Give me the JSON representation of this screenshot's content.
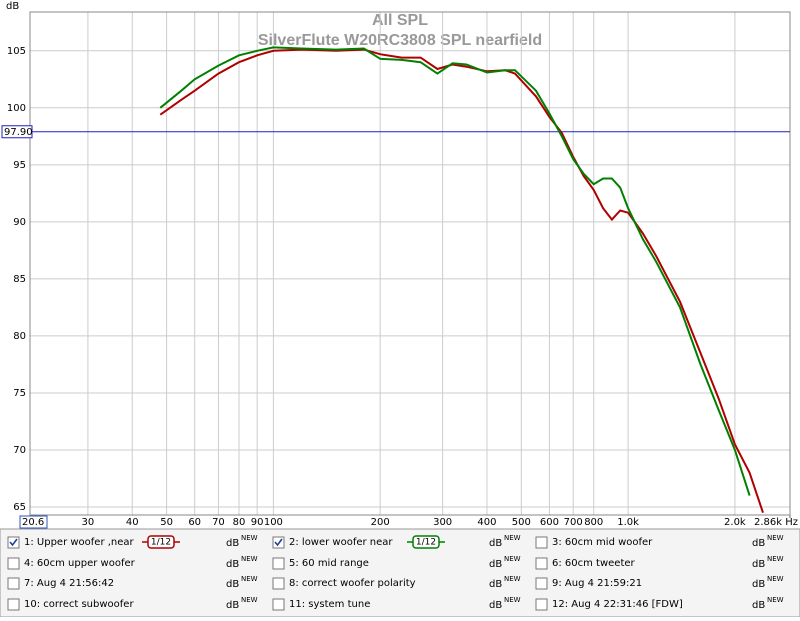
{
  "chart_data": {
    "type": "line",
    "title": "All SPL",
    "subtitle": "SilverFlute W20RC3808 SPL nearfield",
    "y_label": "dB",
    "log_x": true,
    "grid": true,
    "xlim": [
      20.6,
      2860
    ],
    "ylim": [
      64.3,
      108.4
    ],
    "xticks": [
      20.6,
      30,
      40,
      50,
      60,
      70,
      80,
      90,
      100,
      200,
      300,
      400,
      500,
      600,
      700,
      800,
      {
        "value": 1000,
        "label": "1.0k"
      },
      {
        "value": 2000,
        "label": "2.0k"
      },
      {
        "value": 2860,
        "label": "2.86k Hz"
      }
    ],
    "yticks": [
      65,
      70,
      75,
      80,
      85,
      90,
      95,
      100,
      105
    ],
    "cursor": {
      "value": 97.9,
      "label": "97.90"
    },
    "x": [
      48,
      55,
      60,
      70,
      80,
      90,
      100,
      120,
      150,
      180,
      200,
      230,
      260,
      290,
      320,
      350,
      400,
      450,
      480,
      550,
      600,
      650,
      700,
      750,
      800,
      850,
      900,
      950,
      1000,
      1100,
      1200,
      1400,
      1600,
      1800,
      2000,
      2200,
      2400
    ],
    "series": [
      {
        "name": "1: Upper woofer ,near",
        "color": "#b00000",
        "checked": true,
        "smoothing": "1/12",
        "unit": "dB",
        "badge": "NEW",
        "values": [
          99.4,
          100.7,
          101.5,
          103,
          104,
          104.6,
          105,
          105.1,
          105,
          105.1,
          104.7,
          104.4,
          104.4,
          103.4,
          103.8,
          103.6,
          103.2,
          103.3,
          103,
          101,
          99.2,
          97.8,
          95.7,
          94,
          92.8,
          91.2,
          90.2,
          91,
          90.8,
          89,
          87,
          83,
          78.5,
          74.5,
          70.5,
          68,
          64.5
        ]
      },
      {
        "name": "2: lower woofer near",
        "color": "#008000",
        "checked": true,
        "smoothing": "1/12",
        "unit": "dB",
        "badge": "NEW",
        "values": [
          100,
          101.5,
          102.5,
          103.7,
          104.6,
          105,
          105.3,
          105.2,
          105.1,
          105.2,
          104.3,
          104.2,
          104,
          103,
          103.9,
          103.8,
          103.1,
          103.3,
          103.3,
          101.5,
          99.5,
          97.5,
          95.5,
          94.2,
          93.3,
          93.8,
          93.8,
          93,
          91.2,
          88.5,
          86.5,
          82.5,
          77.5,
          73.5,
          70,
          66,
          null
        ]
      }
    ]
  },
  "other_measurements": [
    {
      "label": "3: 60cm mid woofer",
      "color": "#2030c0",
      "unit": "dB",
      "badge": "NEW"
    },
    {
      "label": "4: 60cm upper woofer",
      "color": "#c020c0",
      "unit": "dB",
      "badge": "NEW"
    },
    {
      "label": "5: 60 mid range",
      "color": "#0090a0",
      "unit": "dB",
      "badge": "NEW"
    },
    {
      "label": "6: 60cm tweeter",
      "color": "#c09000",
      "unit": "dB",
      "badge": "NEW"
    },
    {
      "label": "7: Aug 4 21:56:42",
      "color": "#00a050",
      "unit": "dB",
      "badge": "NEW"
    },
    {
      "label": "8: correct woofer polarity",
      "color": "#9030a0",
      "unit": "dB",
      "badge": "NEW"
    },
    {
      "label": "9: Aug 4 21:59:21",
      "color": "#a02090",
      "unit": "dB",
      "badge": "NEW"
    },
    {
      "label": "10: correct subwoofer",
      "color": "#2090b0",
      "unit": "dB",
      "badge": "NEW"
    },
    {
      "label": "11: system tune",
      "color": "#c00000",
      "unit": "dB",
      "badge": "NEW"
    },
    {
      "label": "12: Aug 4 22:31:46 [FDW]",
      "color": "#208020",
      "unit": "dB",
      "badge": "NEW"
    }
  ]
}
